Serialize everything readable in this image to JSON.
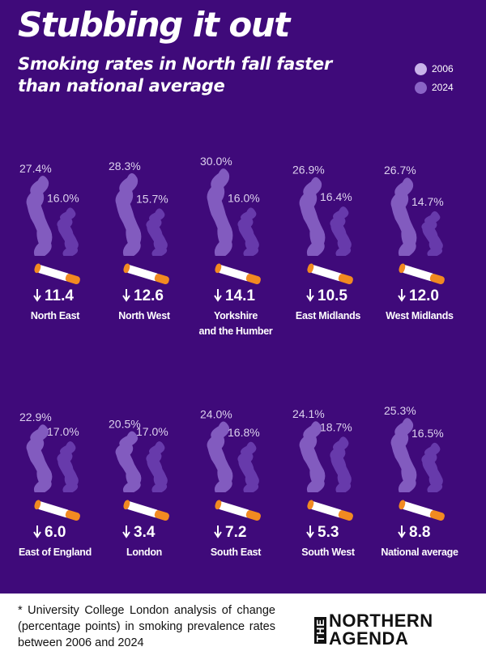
{
  "header": {
    "title": "Stubbing it out",
    "subtitle": "Smoking rates in North fall faster than national average"
  },
  "colors": {
    "background": "#3f0a7a",
    "smoke_2006": "#8a64c6",
    "smoke_2024": "#6c3fb0",
    "cigarette_orange": "#f28a21",
    "cigarette_paper": "#ffffff"
  },
  "legend": [
    {
      "label": "2006",
      "color": "#c9b3ea"
    },
    {
      "label": "2024",
      "color": "#8a64c6"
    }
  ],
  "chart_data": {
    "type": "bar",
    "title": "Stubbing it out",
    "subtitle": "Smoking rates in North fall faster than national average",
    "series_names": [
      "2006",
      "2024"
    ],
    "unit": "%",
    "change_unit": "percentage points",
    "regions": [
      {
        "name": "North East",
        "v2006": "27.4%",
        "v2024": "16.0%",
        "change": "11.4"
      },
      {
        "name": "North West",
        "v2006": "28.3%",
        "v2024": "15.7%",
        "change": "12.6"
      },
      {
        "name": "Yorkshire and the Humber",
        "v2006": "30.0%",
        "v2024": "16.0%",
        "change": "14.1"
      },
      {
        "name": "East Midlands",
        "v2006": "26.9%",
        "v2024": "16.4%",
        "change": "10.5"
      },
      {
        "name": "West Midlands",
        "v2006": "26.7%",
        "v2024": "14.7%",
        "change": "12.0"
      },
      {
        "name": "East of England",
        "v2006": "22.9%",
        "v2024": "17.0%",
        "change": "6.0"
      },
      {
        "name": "London",
        "v2006": "20.5%",
        "v2024": "17.0%",
        "change": "3.4"
      },
      {
        "name": "South East",
        "v2006": "24.0%",
        "v2024": "16.8%",
        "change": "7.2"
      },
      {
        "name": "South West",
        "v2006": "24.1%",
        "v2024": "18.7%",
        "change": "5.3"
      },
      {
        "name": "National average",
        "v2006": "25.3%",
        "v2024": "16.5%",
        "change": "8.8"
      }
    ]
  },
  "footnote": "* University College London analysis of change (percentage points) in smoking prevalence rates between 2006 and 2024",
  "logo": {
    "prefix": "THE",
    "line1": "NORTHERN",
    "line2": "AGENDA"
  }
}
